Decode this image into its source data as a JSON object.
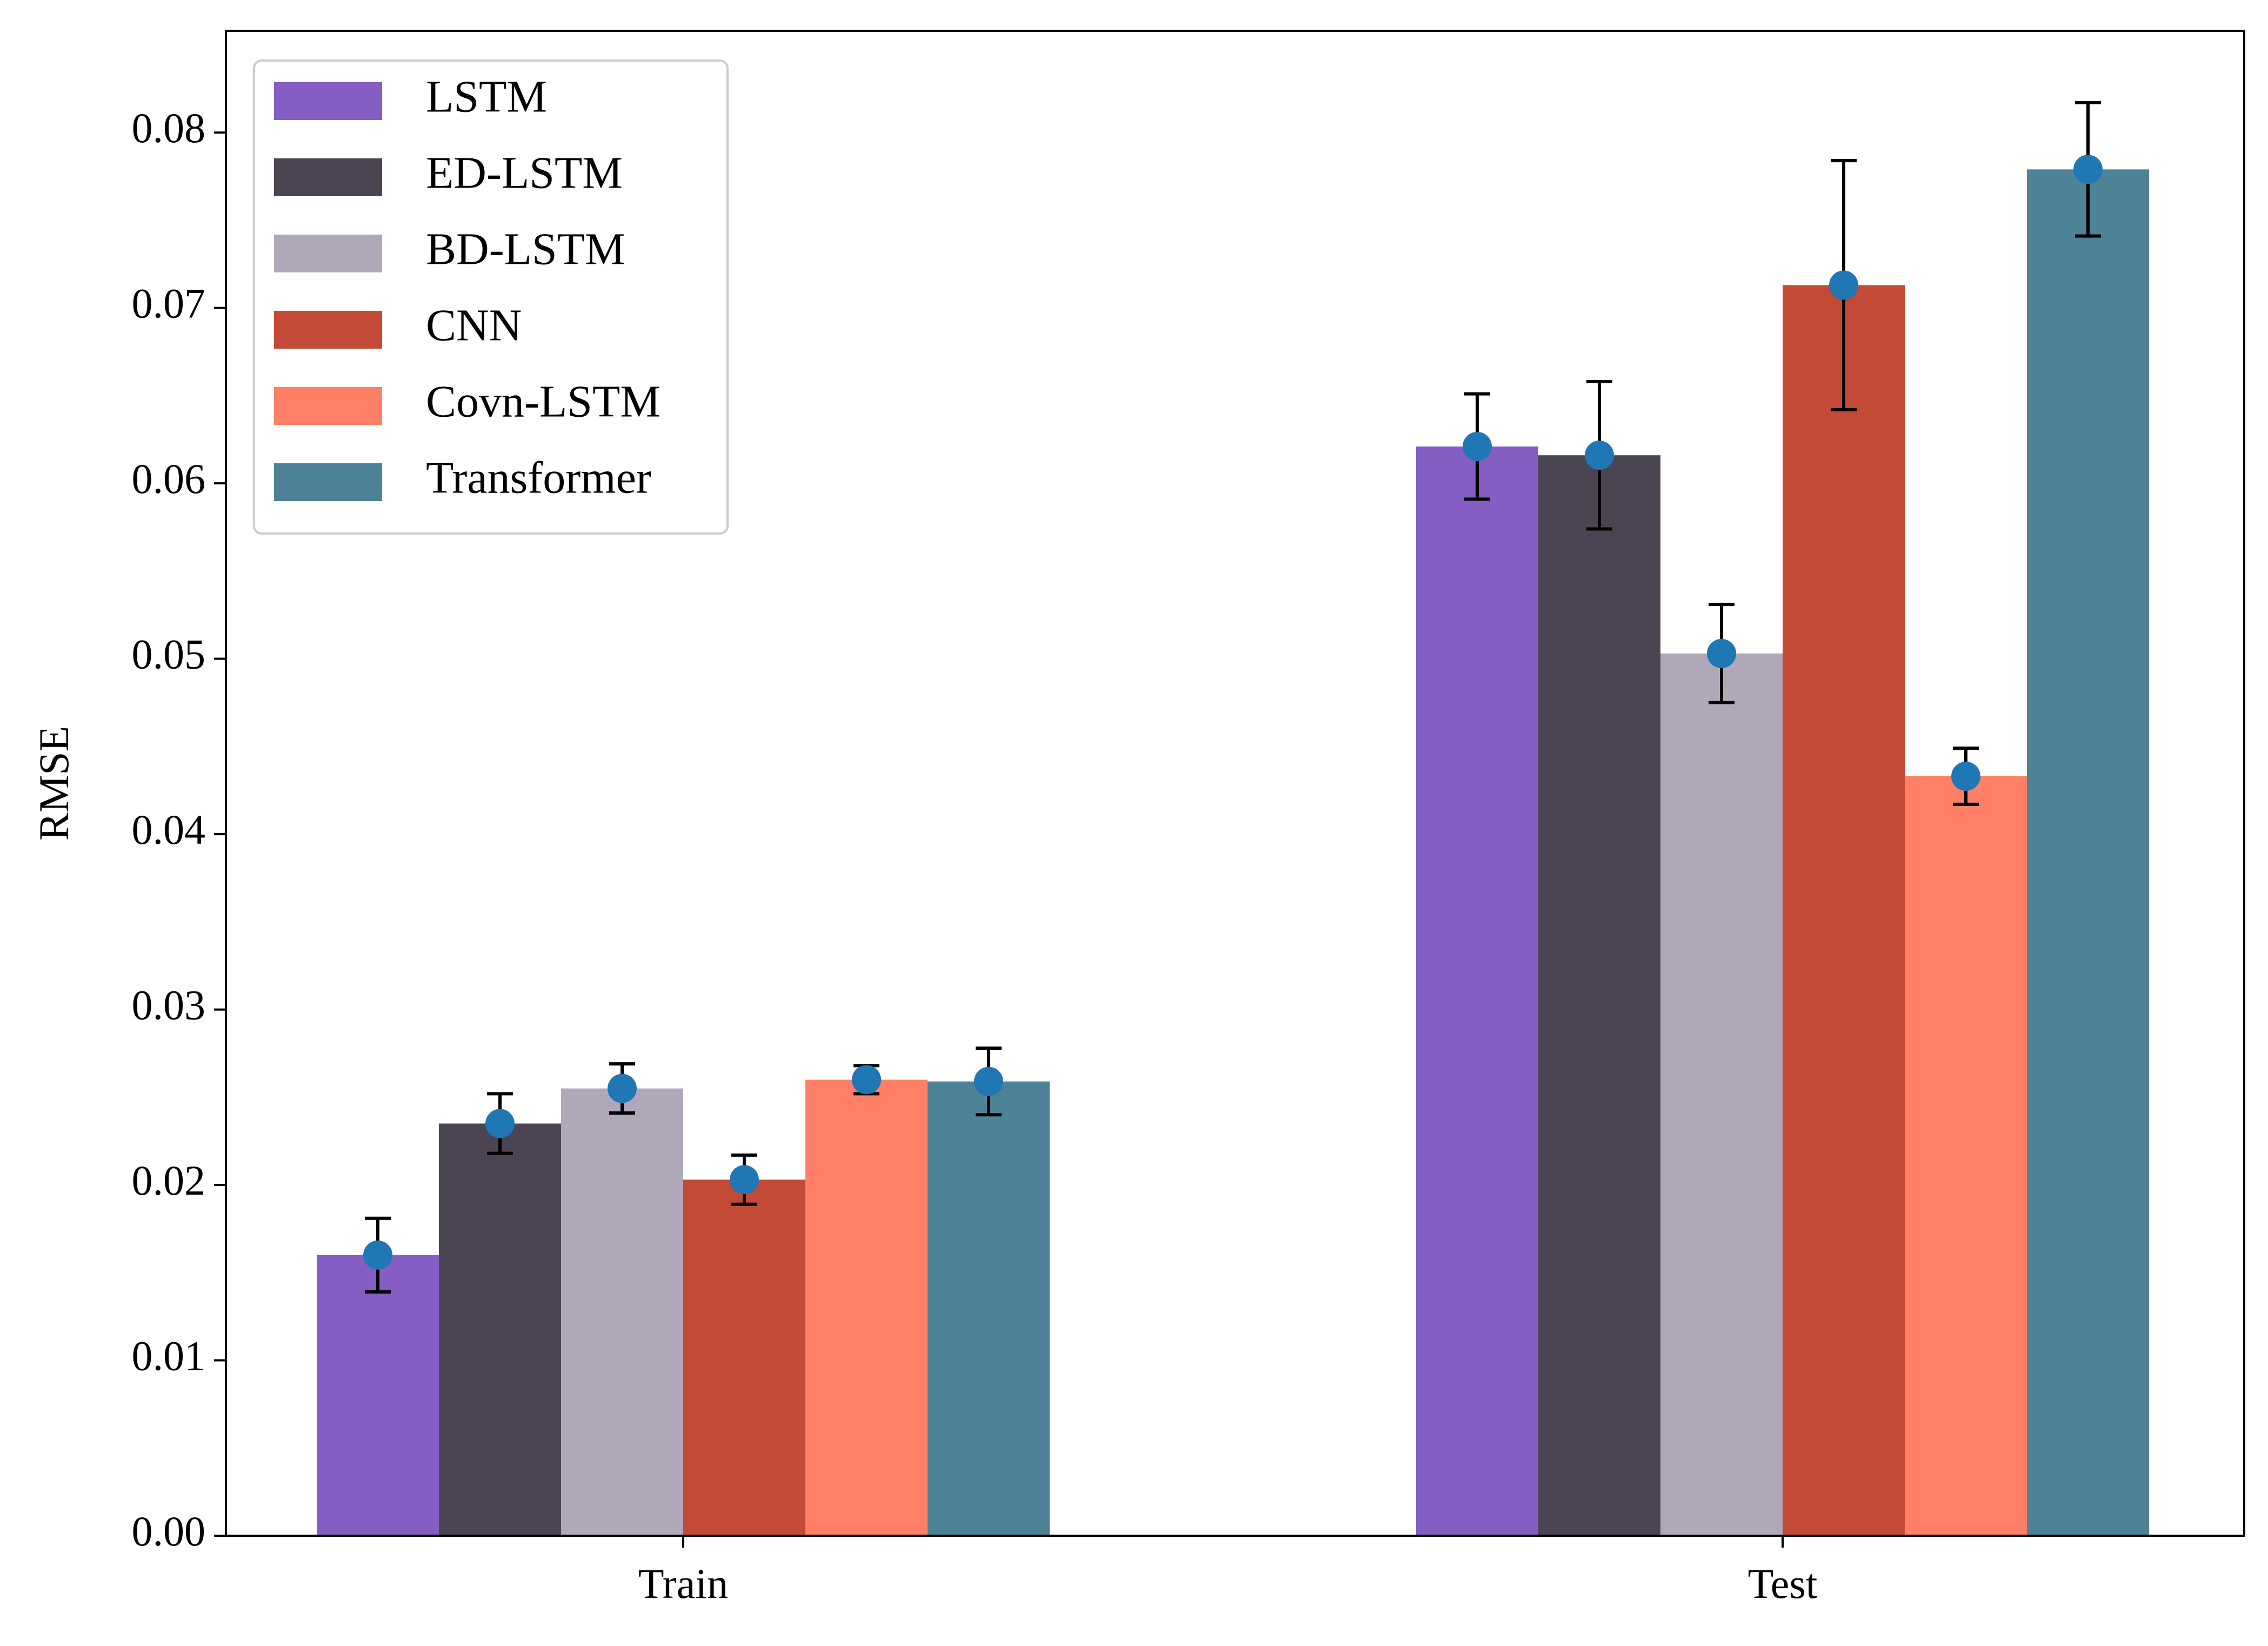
{
  "chart_data": {
    "type": "bar",
    "title": "",
    "xlabel": "",
    "ylabel": "RMSE",
    "categories": [
      "Train",
      "Test"
    ],
    "ylim": [
      0,
      0.0858
    ],
    "yticks": [
      0.0,
      0.01,
      0.02,
      0.03,
      0.04,
      0.05,
      0.06,
      0.07,
      0.08
    ],
    "ytick_labels": [
      "0.00",
      "0.01",
      "0.02",
      "0.03",
      "0.04",
      "0.05",
      "0.06",
      "0.07",
      "0.08"
    ],
    "legend_position": "top-left",
    "marker_color": "#1f77b4",
    "series": [
      {
        "name": "LSTM",
        "color": "#845EC2",
        "values": [
          0.016,
          0.0621
        ],
        "errors": [
          0.0021,
          0.003
        ]
      },
      {
        "name": "ED-LSTM",
        "color": "#4B4453",
        "values": [
          0.0235,
          0.0616
        ],
        "errors": [
          0.0017,
          0.0042
        ]
      },
      {
        "name": "BD-LSTM",
        "color": "#B0A8B9",
        "values": [
          0.0255,
          0.0503
        ],
        "errors": [
          0.0014,
          0.0028
        ]
      },
      {
        "name": "CNN",
        "color": "#C34A36",
        "values": [
          0.0203,
          0.0713
        ],
        "errors": [
          0.0014,
          0.0071
        ]
      },
      {
        "name": "Covn-LSTM",
        "color": "#FF8066",
        "values": [
          0.026,
          0.0433
        ],
        "errors": [
          0.0008,
          0.0016
        ]
      },
      {
        "name": "Transformer",
        "color": "#4E8397",
        "values": [
          0.0259,
          0.0779
        ],
        "errors": [
          0.0019,
          0.0038
        ]
      }
    ]
  }
}
